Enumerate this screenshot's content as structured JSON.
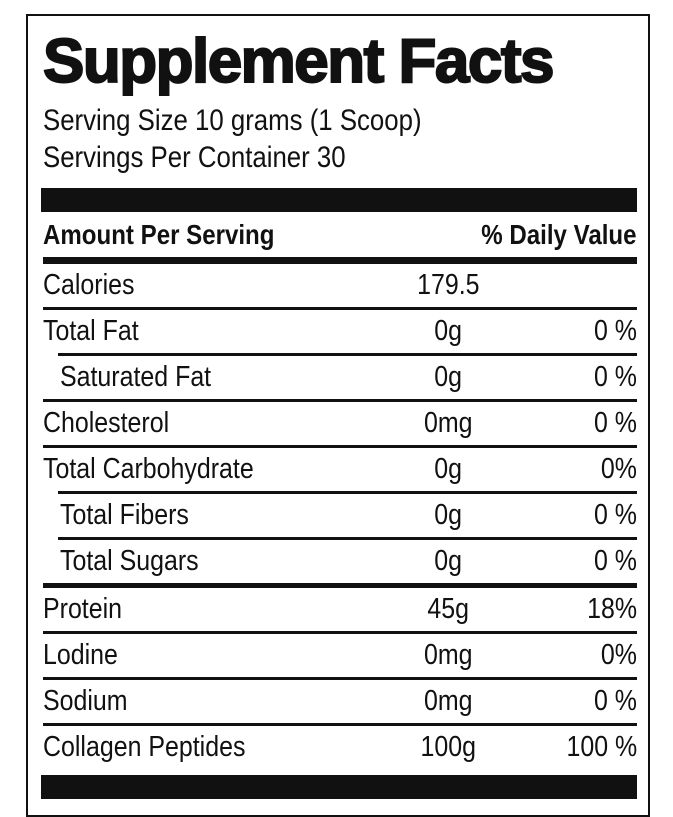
{
  "title": "Supplement Facts",
  "serving_size_label": "Serving Size 10 grams (1 Scoop)",
  "servings_per_container_label": "Servings Per Container 30",
  "table_header": {
    "amount_per_serving": "Amount Per Serving",
    "daily_value": "% Daily Value"
  },
  "rows": [
    {
      "name": "Calories",
      "amount": "179.5",
      "daily_value": "",
      "indent": false,
      "thick_top": false
    },
    {
      "name": "Total Fat",
      "amount": "0g",
      "daily_value": "0 %",
      "indent": false,
      "thick_top": false
    },
    {
      "name": "Saturated Fat",
      "amount": "0g",
      "daily_value": "0 %",
      "indent": true,
      "thick_top": false
    },
    {
      "name": "Cholesterol",
      "amount": "0mg",
      "daily_value": "0 %",
      "indent": false,
      "thick_top": false
    },
    {
      "name": "Total Carbohydrate",
      "amount": "0g",
      "daily_value": "0%",
      "indent": false,
      "thick_top": false
    },
    {
      "name": "Total Fibers",
      "amount": "0g",
      "daily_value": "0 %",
      "indent": true,
      "thick_top": false
    },
    {
      "name": "Total Sugars",
      "amount": "0g",
      "daily_value": "0 %",
      "indent": true,
      "thick_top": false
    },
    {
      "name": "Protein",
      "amount": "45g",
      "daily_value": "18%",
      "indent": false,
      "thick_top": true
    },
    {
      "name": "Lodine",
      "amount": "0mg",
      "daily_value": "0%",
      "indent": false,
      "thick_top": false
    },
    {
      "name": "Sodium",
      "amount": "0mg",
      "daily_value": "0 %",
      "indent": false,
      "thick_top": false
    },
    {
      "name": "Collagen Peptides",
      "amount": "100g",
      "daily_value": "100 %",
      "indent": false,
      "thick_top": false
    }
  ],
  "colors": {
    "ink": "#111111",
    "background": "#ffffff"
  }
}
